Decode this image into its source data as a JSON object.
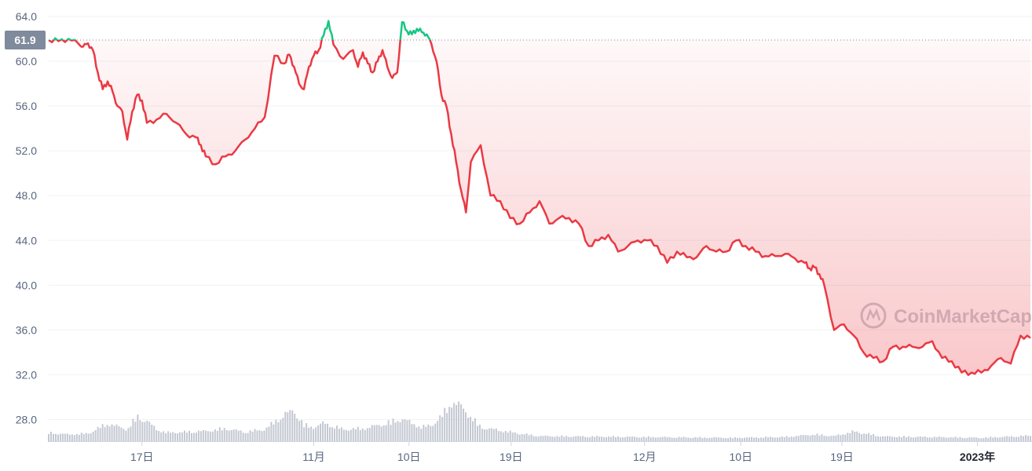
{
  "chart_data": {
    "type": "area",
    "title": "",
    "xlabel": "",
    "ylabel": "",
    "ylim": [
      26.0,
      64.0
    ],
    "y_ticks": [
      "64.0",
      "60.0",
      "56.0",
      "52.0",
      "48.0",
      "44.0",
      "40.0",
      "36.0",
      "32.0",
      "28.0"
    ],
    "x_ticks": [
      {
        "label": "17日",
        "t": 0.095,
        "bold": false
      },
      {
        "label": "11月",
        "t": 0.27,
        "bold": false
      },
      {
        "label": "10日",
        "t": 0.367,
        "bold": false
      },
      {
        "label": "19日",
        "t": 0.471,
        "bold": false
      },
      {
        "label": "12月",
        "t": 0.607,
        "bold": false
      },
      {
        "label": "10日",
        "t": 0.705,
        "bold": false
      },
      {
        "label": "19日",
        "t": 0.808,
        "bold": false
      },
      {
        "label": "2023年",
        "t": 0.946,
        "bold": true
      }
    ],
    "reference_value": 61.9,
    "reference_label": "61.9",
    "grid": true,
    "legend": "none",
    "colors": {
      "up": "#16c784",
      "down": "#ea3943",
      "fill": "#ea3943",
      "volume": "#c3c8d2",
      "grid": "#eff2f5",
      "ref_badge": "#808a9d"
    },
    "price_series": {
      "x": [
        0,
        0.01,
        0.02,
        0.03,
        0.035,
        0.04,
        0.045,
        0.05,
        0.055,
        0.06,
        0.065,
        0.07,
        0.075,
        0.08,
        0.085,
        0.09,
        0.095,
        0.1,
        0.11,
        0.12,
        0.13,
        0.14,
        0.15,
        0.155,
        0.16,
        0.17,
        0.18,
        0.19,
        0.2,
        0.21,
        0.22,
        0.23,
        0.24,
        0.245,
        0.25,
        0.255,
        0.26,
        0.265,
        0.27,
        0.275,
        0.28,
        0.285,
        0.29,
        0.3,
        0.31,
        0.315,
        0.32,
        0.325,
        0.33,
        0.335,
        0.34,
        0.345,
        0.35,
        0.355,
        0.36,
        0.365,
        0.37,
        0.375,
        0.38,
        0.385,
        0.39,
        0.395,
        0.4,
        0.405,
        0.41,
        0.415,
        0.42,
        0.425,
        0.43,
        0.44,
        0.45,
        0.46,
        0.47,
        0.48,
        0.49,
        0.5,
        0.51,
        0.52,
        0.53,
        0.54,
        0.55,
        0.56,
        0.57,
        0.58,
        0.59,
        0.6,
        0.61,
        0.62,
        0.63,
        0.64,
        0.65,
        0.66,
        0.67,
        0.68,
        0.69,
        0.7,
        0.71,
        0.72,
        0.73,
        0.74,
        0.75,
        0.76,
        0.77,
        0.775,
        0.78,
        0.785,
        0.79,
        0.8,
        0.81,
        0.82,
        0.83,
        0.84,
        0.85,
        0.86,
        0.87,
        0.88,
        0.89,
        0.9,
        0.91,
        0.92,
        0.93,
        0.94,
        0.95,
        0.96,
        0.97,
        0.98,
        0.99,
        1.0
      ],
      "y": [
        61.9,
        61.8,
        62.0,
        61.6,
        61.3,
        61.6,
        61.0,
        59.0,
        57.5,
        58.2,
        57.3,
        56.0,
        55.5,
        53.0,
        55.5,
        57.0,
        56.5,
        54.5,
        54.8,
        55.3,
        54.5,
        53.5,
        53.2,
        52.5,
        51.5,
        50.8,
        51.5,
        52.0,
        53.0,
        54.0,
        55.0,
        60.5,
        59.8,
        60.6,
        59.5,
        58.0,
        57.5,
        59.5,
        60.5,
        61.0,
        62.3,
        63.6,
        61.5,
        60.2,
        61.0,
        59.5,
        60.8,
        59.8,
        59.0,
        60.0,
        61.0,
        59.5,
        58.5,
        59.0,
        63.5,
        62.7,
        62.4,
        62.9,
        62.6,
        62.4,
        61.5,
        60.0,
        57.0,
        56.0,
        53.5,
        51.0,
        48.5,
        46.5,
        51.0,
        52.5,
        48.0,
        47.5,
        46.0,
        45.5,
        46.5,
        47.5,
        45.5,
        46.0,
        46.0,
        45.5,
        43.5,
        44.0,
        44.5,
        43.0,
        43.5,
        44.0,
        44.0,
        43.5,
        42.0,
        43.0,
        42.5,
        42.5,
        43.5,
        43.0,
        43.0,
        44.0,
        43.5,
        43.0,
        42.6,
        42.6,
        42.8,
        42.4,
        42.0,
        41.5,
        41.6,
        41.0,
        40.0,
        36.0,
        36.5,
        35.5,
        34.0,
        33.5,
        33.2,
        34.5,
        34.5,
        34.5,
        34.5,
        35.0,
        33.5,
        33.2,
        32.2,
        32.2,
        32.2,
        32.8,
        33.5,
        33.0,
        35.5,
        35.3
      ]
    },
    "volume_series": {
      "x": [
        0,
        0.02,
        0.04,
        0.06,
        0.08,
        0.09,
        0.1,
        0.11,
        0.12,
        0.14,
        0.16,
        0.18,
        0.2,
        0.22,
        0.24,
        0.25,
        0.26,
        0.27,
        0.28,
        0.3,
        0.32,
        0.34,
        0.36,
        0.38,
        0.39,
        0.4,
        0.41,
        0.42,
        0.44,
        0.48,
        0.5,
        0.6,
        0.7,
        0.75,
        0.78,
        0.8,
        0.82,
        0.85,
        0.9,
        0.95,
        1.0
      ],
      "y": [
        0.22,
        0.18,
        0.2,
        0.44,
        0.3,
        0.6,
        0.5,
        0.3,
        0.22,
        0.24,
        0.26,
        0.32,
        0.24,
        0.3,
        0.65,
        0.75,
        0.4,
        0.35,
        0.45,
        0.3,
        0.32,
        0.42,
        0.55,
        0.35,
        0.4,
        0.6,
        0.95,
        0.85,
        0.35,
        0.2,
        0.14,
        0.12,
        0.1,
        0.12,
        0.18,
        0.14,
        0.25,
        0.13,
        0.12,
        0.1,
        0.15
      ]
    },
    "watermark": "CoinMarketCap"
  }
}
